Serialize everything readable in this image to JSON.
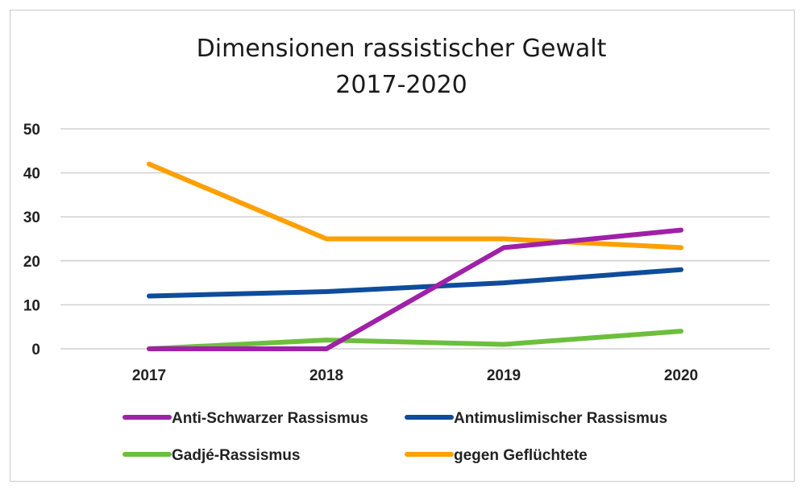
{
  "chart_data": {
    "type": "line",
    "title": "Dimensionen rassistischer Gewalt",
    "subtitle": "2017-2020",
    "xlabel": "",
    "ylabel": "",
    "categories": [
      "2017",
      "2018",
      "2019",
      "2020"
    ],
    "ylim": [
      0,
      50
    ],
    "yticks": [
      0,
      10,
      20,
      30,
      40,
      50
    ],
    "grid": true,
    "legend_position": "bottom",
    "series": [
      {
        "name": "Anti-Schwarzer Rassismus",
        "color": "#a020a8",
        "values": [
          0,
          0,
          23,
          27
        ]
      },
      {
        "name": "Antimuslimischer Rassismus",
        "color": "#0f4c9c",
        "values": [
          12,
          13,
          15,
          18
        ]
      },
      {
        "name": "Gadjé-Rassismus",
        "color": "#6cbf3c",
        "values": [
          0,
          2,
          1,
          4
        ]
      },
      {
        "name": "gegen Geflüchtete",
        "color": "#ff9f00",
        "values": [
          42,
          25,
          25,
          23
        ]
      }
    ]
  }
}
